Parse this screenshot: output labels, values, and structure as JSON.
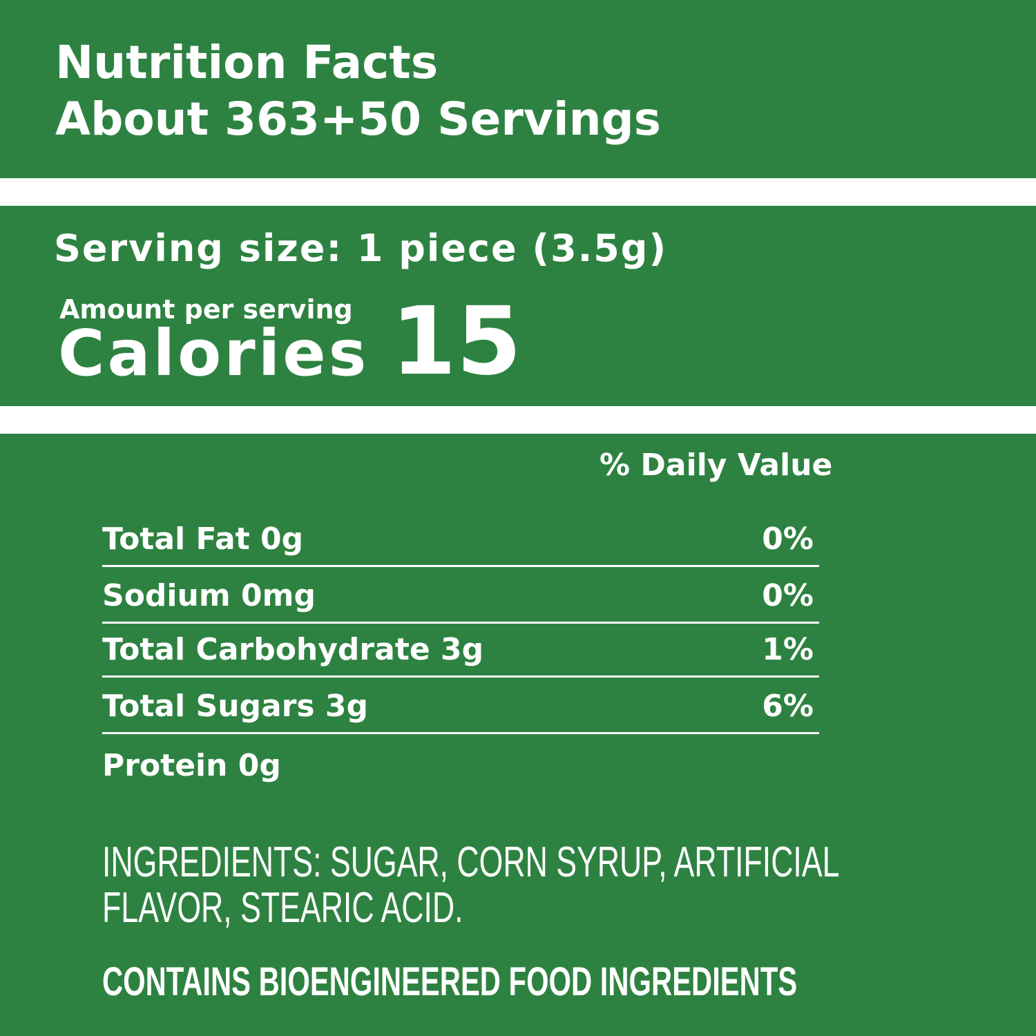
{
  "header": {
    "title": "Nutrition Facts",
    "servings": "About 363+50 Servings"
  },
  "serving": {
    "size": "Serving size: 1 piece (3.5g)",
    "amount_label": "Amount per serving",
    "calories_label": "Calories",
    "calories": "15"
  },
  "table": {
    "header": "% Daily Value",
    "rows": [
      [
        "Total Fat 0g",
        "0%"
      ],
      [
        "Sodium 0mg",
        "0%"
      ],
      [
        "Total Carbohydrate 3g",
        "1%"
      ],
      [
        "Total Sugars 3g",
        "6%"
      ],
      [
        "Protein 0g",
        null
      ]
    ]
  },
  "ingredients": "INGREDIENTS: SUGAR, CORN SYRUP, ARTIFICIAL FLAVOR, STEARIC ACID.",
  "contains": "CONTAINS BIOENGINEERED FOOD INGREDIENTS"
}
